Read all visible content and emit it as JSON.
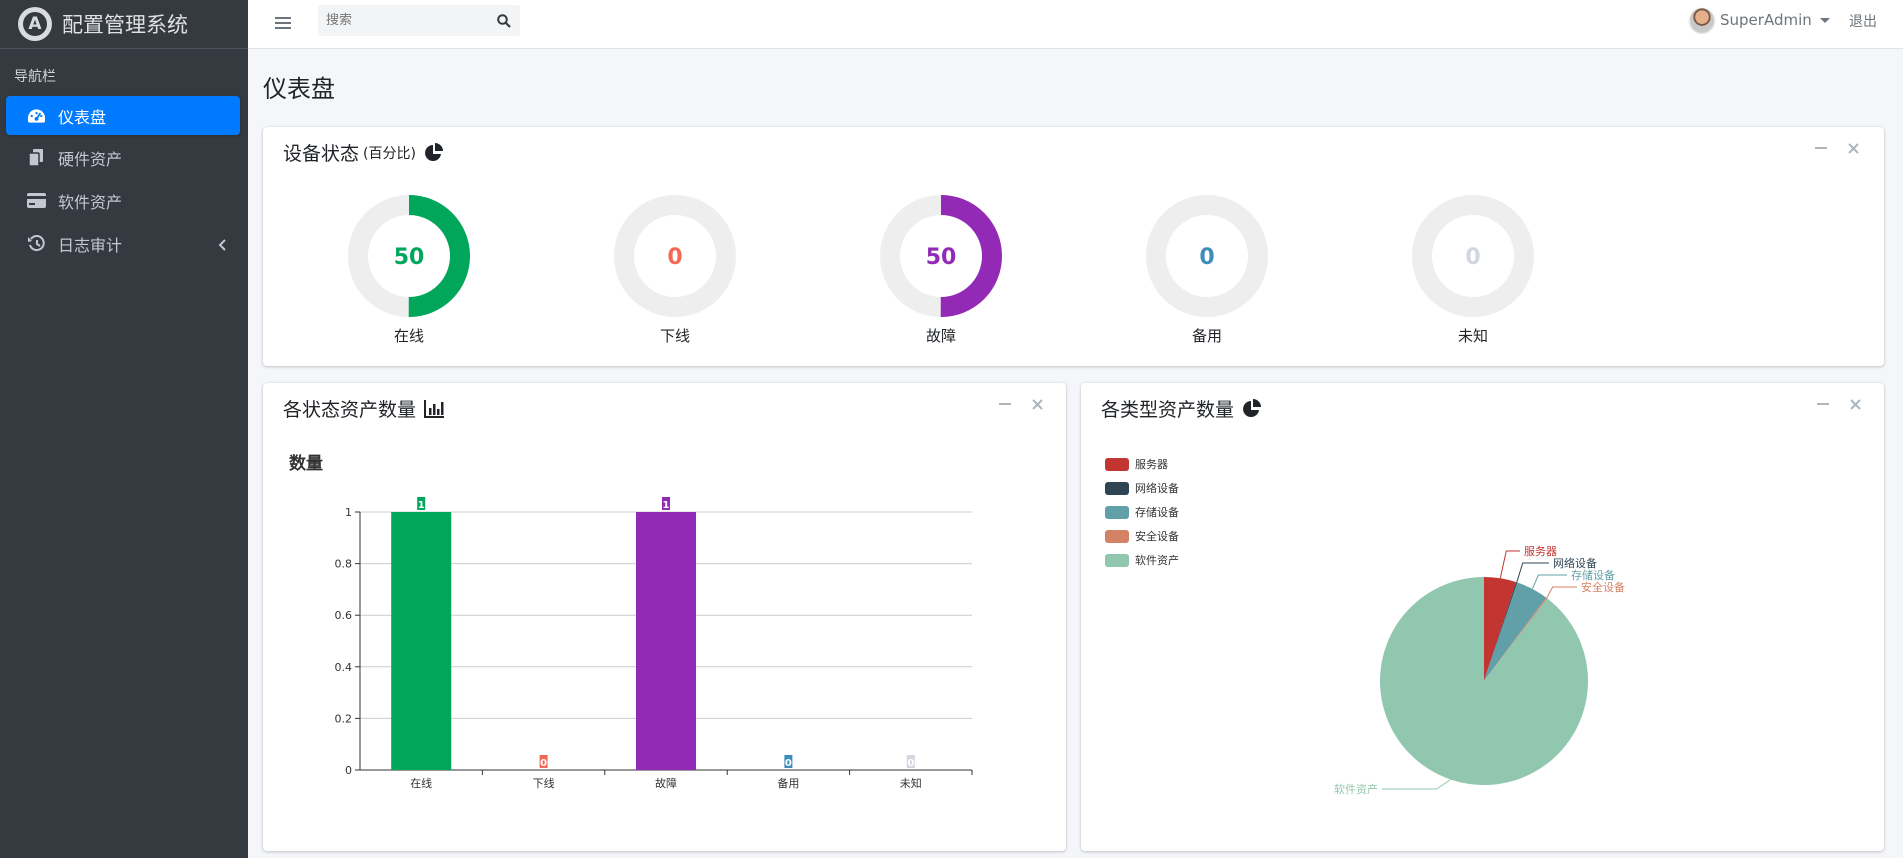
{
  "app": {
    "title": "配置管理系统",
    "logo_letter": "A"
  },
  "sidebar": {
    "header": "导航栏",
    "items": [
      {
        "label": "仪表盘",
        "active": true,
        "icon": "tachometer-icon"
      },
      {
        "label": "硬件资产",
        "active": false,
        "icon": "copy-icon"
      },
      {
        "label": "软件资产",
        "active": false,
        "icon": "credit-card-icon"
      },
      {
        "label": "日志审计",
        "active": false,
        "icon": "history-icon",
        "expandable": true
      }
    ]
  },
  "topbar": {
    "search_placeholder": "搜索",
    "user_name": "SuperAdmin",
    "logout_label": "退出"
  },
  "page": {
    "title": "仪表盘"
  },
  "status_card": {
    "title": "设备状态",
    "subtitle": "(百分比)",
    "items": [
      {
        "label": "在线",
        "value": "50",
        "percent": 50,
        "color": "#00a65a"
      },
      {
        "label": "下线",
        "value": "0",
        "percent": 0,
        "color": "#f56954"
      },
      {
        "label": "故障",
        "value": "50",
        "percent": 50,
        "color": "#932ab6"
      },
      {
        "label": "备用",
        "value": "0",
        "percent": 0,
        "color": "#3c8dbc"
      },
      {
        "label": "未知",
        "value": "0",
        "percent": 0,
        "color": "#d2d6de"
      }
    ]
  },
  "bar_card": {
    "title": "各状态资产数量"
  },
  "pie_card": {
    "title": "各类型资产数量"
  },
  "chart_data": [
    {
      "type": "bar",
      "title": "数量",
      "categories": [
        "在线",
        "下线",
        "故障",
        "备用",
        "未知"
      ],
      "values": [
        1,
        0,
        1,
        0,
        0
      ],
      "data_labels": [
        "1",
        "0",
        "1",
        "0",
        "0"
      ],
      "colors": [
        "#00a65a",
        "#f56954",
        "#932ab6",
        "#3c8dbc",
        "#d2d6de"
      ],
      "ylim": [
        0,
        1
      ],
      "yticks": [
        "0",
        "0.2",
        "0.4",
        "0.6",
        "0.8",
        "1"
      ],
      "grid": true
    },
    {
      "type": "pie",
      "categories": [
        "服务器",
        "网络设备",
        "存储设备",
        "安全设备",
        "软件资产"
      ],
      "values": [
        5,
        0.2,
        5,
        0.2,
        89.6
      ],
      "colors": [
        "#c23531",
        "#2f4554",
        "#61a0a8",
        "#d48265",
        "#91c7ae"
      ],
      "legend": "top-left"
    }
  ]
}
